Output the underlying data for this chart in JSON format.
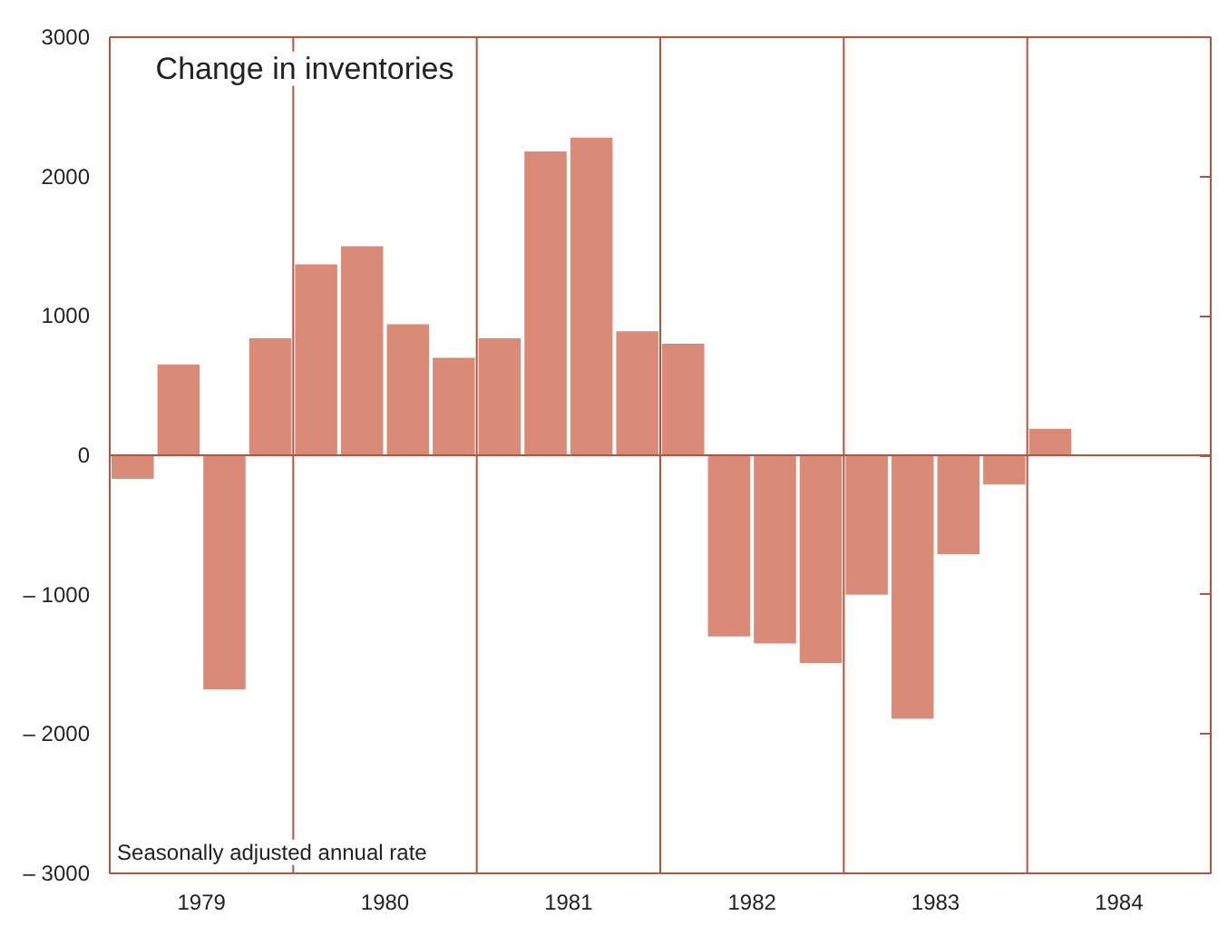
{
  "chart_data": {
    "type": "bar",
    "title": "Change in inventories",
    "annotations": [
      "Seasonally adjusted annual rate"
    ],
    "x": [
      1979.125,
      1979.375,
      1979.625,
      1979.875,
      1980.125,
      1980.375,
      1980.625,
      1980.875,
      1981.125,
      1981.375,
      1981.625,
      1981.875,
      1982.125,
      1982.375,
      1982.625,
      1982.875,
      1983.125,
      1983.375,
      1983.625,
      1983.875,
      1984.125
    ],
    "values": [
      -170,
      650,
      -1680,
      840,
      1370,
      1500,
      940,
      700,
      840,
      2180,
      2280,
      890,
      800,
      -1300,
      -1350,
      -1490,
      -1000,
      -1890,
      -710,
      -210,
      190
    ],
    "color": "#d98b78",
    "xlim": [
      1979,
      1985
    ],
    "xticks": [
      {
        "value": 1979.5,
        "label": "1979"
      },
      {
        "value": 1980.5,
        "label": "1980"
      },
      {
        "value": 1981.5,
        "label": "1981"
      },
      {
        "value": 1982.5,
        "label": "1982"
      },
      {
        "value": 1983.5,
        "label": "1983"
      },
      {
        "value": 1984.5,
        "label": "1984"
      }
    ],
    "ylim": [
      -3000,
      3000
    ],
    "yticks": [
      {
        "value": -3000,
        "label": "– 3000"
      },
      {
        "value": -2000,
        "label": "– 2000"
      },
      {
        "value": -1000,
        "label": "– 1000"
      },
      0,
      1000,
      2000,
      3000
    ],
    "ref_lines": [
      {
        "axis": "y",
        "value": 0,
        "color": "#b5533f"
      },
      {
        "axis": "x",
        "value": 1980,
        "color": "#b5533f"
      },
      {
        "axis": "x",
        "value": 1981,
        "color": "#b5533f"
      },
      {
        "axis": "x",
        "value": 1982,
        "color": "#b5533f"
      },
      {
        "axis": "x",
        "value": 1983,
        "color": "#b5533f"
      },
      {
        "axis": "x",
        "value": 1984,
        "color": "#b5533f"
      }
    ],
    "grid": false
  }
}
